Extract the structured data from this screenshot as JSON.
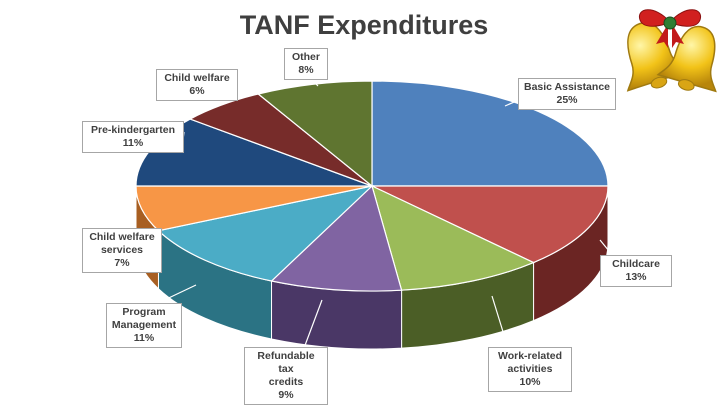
{
  "chart_data": {
    "type": "pie",
    "title": "TANF Expenditures",
    "slices": [
      {
        "label": "Basic Assistance",
        "value": 25,
        "display": "25%",
        "color": "#4f81bd",
        "side": "#2f4d72"
      },
      {
        "label": "Childcare",
        "value": 13,
        "display": "13%",
        "color": "#c0504d",
        "side": "#6b2523"
      },
      {
        "label": "Work-related activities",
        "value": 10,
        "display": "10%",
        "color": "#9bbb59",
        "side": "#4b5e26"
      },
      {
        "label": "Refundable tax credits",
        "value": 9,
        "display": "9%",
        "color": "#8064a2",
        "side": "#4a3766"
      },
      {
        "label": "Program Management",
        "value": 11,
        "display": "11%",
        "color": "#4bacc6",
        "side": "#2b7384"
      },
      {
        "label": "Child welfare services",
        "value": 7,
        "display": "7%",
        "color": "#f79646",
        "side": "#a85f22"
      },
      {
        "label": "Pre-kindergarten",
        "value": 11,
        "display": "11%",
        "color": "#1f497d",
        "side": "#122a4a"
      },
      {
        "label": "Child welfare",
        "value": 6,
        "display": "6%",
        "color": "#772c2a",
        "side": "#451816"
      },
      {
        "label": "Other",
        "value": 8,
        "display": "8%",
        "color": "#5f7530",
        "side": "#37451a"
      }
    ]
  },
  "decoration": {
    "icon": "christmas-bells-icon"
  }
}
